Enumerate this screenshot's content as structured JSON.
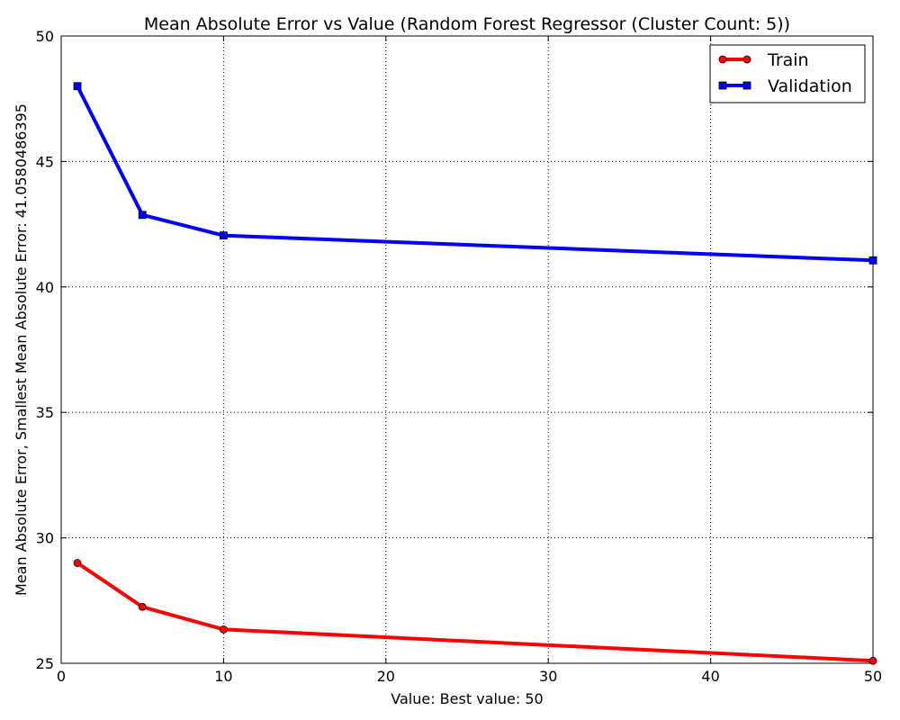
{
  "chart_data": {
    "type": "line",
    "title": "Mean Absolute Error vs Value (Random Forest Regressor (Cluster Count: 5))",
    "xlabel": "Value: Best value: 50",
    "ylabel": "Mean Absolute Error, Smallest Mean Absolute Error: 41.0580486395",
    "xlim": [
      0,
      50
    ],
    "ylim": [
      25,
      50
    ],
    "x_ticks": [
      0,
      10,
      20,
      30,
      40,
      50
    ],
    "y_ticks": [
      25,
      30,
      35,
      40,
      45,
      50
    ],
    "grid": true,
    "legend_position": "top-right",
    "series": [
      {
        "name": "Train",
        "color": "#ff0000",
        "marker": "circle",
        "x": [
          1,
          5,
          10,
          50
        ],
        "y": [
          29.0,
          27.25,
          26.35,
          25.1
        ]
      },
      {
        "name": "Validation",
        "color": "#0000ff",
        "marker": "square",
        "x": [
          1,
          5,
          10,
          50
        ],
        "y": [
          48.0,
          42.87,
          42.05,
          41.058
        ]
      }
    ]
  }
}
